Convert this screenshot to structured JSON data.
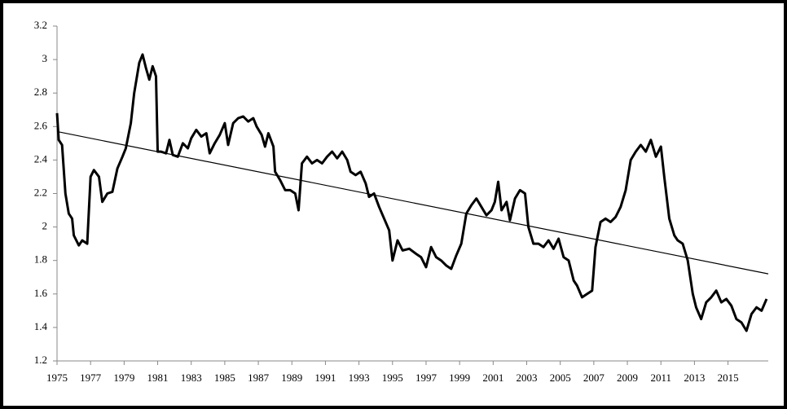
{
  "chart_data": {
    "type": "line",
    "series": [
      {
        "color": "#000000",
        "width": 3,
        "x": [
          1975.0,
          1975.1,
          1975.3,
          1975.5,
          1975.7,
          1975.9,
          1976.0,
          1976.3,
          1976.5,
          1976.8,
          1977.0,
          1977.2,
          1977.5,
          1977.7,
          1978.0,
          1978.3,
          1978.6,
          1978.9,
          1979.1,
          1979.4,
          1979.6,
          1979.9,
          1980.1,
          1980.3,
          1980.5,
          1980.7,
          1980.9,
          1981.0,
          1981.2,
          1981.5,
          1981.7,
          1981.9,
          1982.2,
          1982.5,
          1982.8,
          1983.0,
          1983.3,
          1983.6,
          1983.9,
          1984.1,
          1984.4,
          1984.7,
          1985.0,
          1985.2,
          1985.5,
          1985.8,
          1986.1,
          1986.4,
          1986.7,
          1986.9,
          1987.2,
          1987.4,
          1987.6,
          1987.9,
          1988.0,
          1988.3,
          1988.6,
          1988.9,
          1989.2,
          1989.4,
          1989.6,
          1989.9,
          1990.2,
          1990.5,
          1990.8,
          1991.1,
          1991.4,
          1991.7,
          1992.0,
          1992.3,
          1992.5,
          1992.8,
          1993.1,
          1993.4,
          1993.6,
          1993.9,
          1994.2,
          1994.5,
          1994.8,
          1995.0,
          1995.3,
          1995.6,
          1996.0,
          1996.4,
          1996.7,
          1997.0,
          1997.3,
          1997.6,
          1997.9,
          1998.2,
          1998.5,
          1998.8,
          1999.1,
          1999.4,
          1999.7,
          2000.0,
          2000.3,
          2000.6,
          2000.9,
          2001.1,
          2001.3,
          2001.5,
          2001.8,
          2002.0,
          2002.3,
          2002.6,
          2002.9,
          2003.1,
          2003.4,
          2003.7,
          2004.0,
          2004.3,
          2004.6,
          2004.9,
          2005.2,
          2005.5,
          2005.8,
          2006.0,
          2006.3,
          2006.6,
          2006.9,
          2007.1,
          2007.4,
          2007.7,
          2008.0,
          2008.3,
          2008.6,
          2008.9,
          2009.2,
          2009.5,
          2009.8,
          2010.1,
          2010.4,
          2010.7,
          2011.0,
          2011.2,
          2011.5,
          2011.8,
          2012.0,
          2012.3,
          2012.6,
          2012.9,
          2013.1,
          2013.4,
          2013.7,
          2014.0,
          2014.3,
          2014.6,
          2014.9,
          2015.2,
          2015.5,
          2015.8,
          2016.1,
          2016.4,
          2016.7,
          2017.0,
          2017.3
        ],
        "values": [
          2.68,
          2.52,
          2.49,
          2.2,
          2.08,
          2.05,
          1.95,
          1.89,
          1.92,
          1.9,
          2.3,
          2.34,
          2.3,
          2.15,
          2.2,
          2.21,
          2.35,
          2.42,
          2.47,
          2.62,
          2.8,
          2.98,
          3.03,
          2.95,
          2.88,
          2.96,
          2.9,
          2.45,
          2.45,
          2.44,
          2.52,
          2.43,
          2.42,
          2.5,
          2.47,
          2.53,
          2.58,
          2.54,
          2.56,
          2.44,
          2.5,
          2.55,
          2.62,
          2.49,
          2.62,
          2.65,
          2.66,
          2.63,
          2.65,
          2.6,
          2.55,
          2.48,
          2.56,
          2.48,
          2.33,
          2.28,
          2.22,
          2.22,
          2.2,
          2.1,
          2.38,
          2.42,
          2.38,
          2.4,
          2.38,
          2.42,
          2.45,
          2.41,
          2.45,
          2.4,
          2.33,
          2.31,
          2.33,
          2.26,
          2.18,
          2.2,
          2.12,
          2.05,
          1.98,
          1.8,
          1.92,
          1.86,
          1.87,
          1.84,
          1.82,
          1.76,
          1.88,
          1.82,
          1.8,
          1.77,
          1.75,
          1.83,
          1.9,
          2.08,
          2.13,
          2.17,
          2.12,
          2.07,
          2.1,
          2.15,
          2.27,
          2.1,
          2.15,
          2.04,
          2.17,
          2.22,
          2.2,
          2.0,
          1.9,
          1.9,
          1.88,
          1.92,
          1.87,
          1.93,
          1.82,
          1.8,
          1.68,
          1.65,
          1.58,
          1.6,
          1.62,
          1.88,
          2.03,
          2.05,
          2.03,
          2.06,
          2.12,
          2.22,
          2.4,
          2.45,
          2.49,
          2.45,
          2.52,
          2.42,
          2.48,
          2.3,
          2.05,
          1.95,
          1.92,
          1.9,
          1.8,
          1.6,
          1.52,
          1.45,
          1.55,
          1.58,
          1.62,
          1.55,
          1.57,
          1.53,
          1.45,
          1.43,
          1.38,
          1.48,
          1.52,
          1.5,
          1.57
        ]
      },
      {
        "color": "#000000",
        "width": 1.2,
        "x": [
          1975.0,
          2017.4
        ],
        "values": [
          2.57,
          1.72
        ]
      }
    ],
    "xlim": [
      1975,
      2017.4
    ],
    "xticks": [
      1975,
      1977,
      1979,
      1981,
      1983,
      1985,
      1987,
      1989,
      1991,
      1993,
      1995,
      1997,
      1999,
      2001,
      2003,
      2005,
      2007,
      2009,
      2011,
      2013,
      2015
    ],
    "ylim": [
      1.2,
      3.2
    ],
    "yticks": [
      {
        "value": 1.2,
        "label": "1.2"
      },
      {
        "value": 1.4,
        "label": "1.4"
      },
      {
        "value": 1.6,
        "label": "1.6"
      },
      {
        "value": 1.8,
        "label": "1.8"
      },
      2,
      {
        "value": 2.2,
        "label": "2.2"
      },
      {
        "value": 2.4,
        "label": "2.4"
      },
      {
        "value": 2.6,
        "label": "2.6"
      },
      {
        "value": 2.8,
        "label": "2.8"
      },
      3,
      {
        "value": 3.2,
        "label": "3.2"
      }
    ],
    "grid": false
  }
}
